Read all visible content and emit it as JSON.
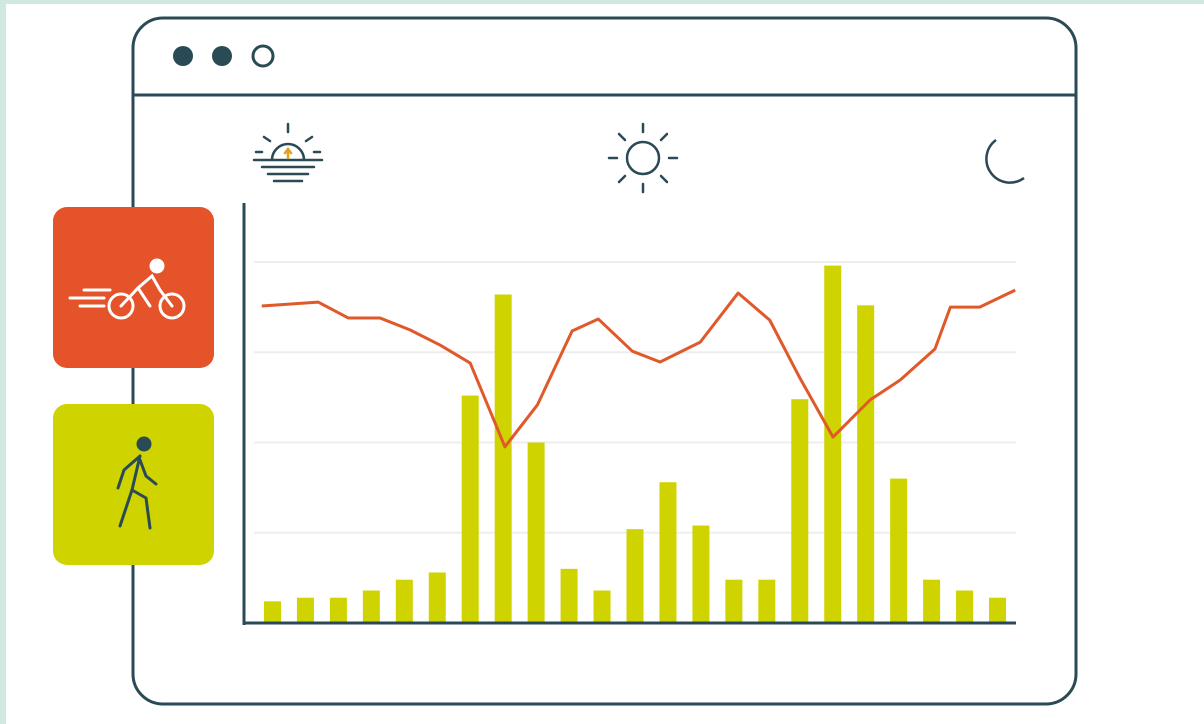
{
  "chart_data": [
    {
      "type": "bar",
      "categories": [
        null,
        null,
        null,
        null,
        null,
        null,
        null,
        null,
        null,
        null,
        null,
        null,
        null,
        null,
        null,
        null,
        null,
        null,
        null,
        null,
        null,
        null,
        null
      ],
      "values": [
        6,
        7,
        7,
        9,
        12,
        14,
        63,
        91,
        50,
        15,
        9,
        26,
        39,
        27,
        12,
        12,
        62,
        99,
        88,
        40,
        12,
        9,
        7
      ],
      "color": "#cfd400",
      "ylim": [
        0,
        100
      ],
      "yticks": [
        25,
        50,
        75,
        100
      ],
      "grid": true
    },
    {
      "type": "line",
      "x": [
        2.3,
        9.6,
        13.5,
        17.6,
        21.5,
        25.4,
        29.3,
        33.8,
        38,
        42.5,
        45.9,
        50.3,
        53.9,
        59.1,
        64,
        68.1,
        72,
        76.3,
        81.1,
        85,
        89.5,
        91.5,
        95.3,
        99.9
      ],
      "values": [
        87.8,
        88.9,
        84.5,
        84.5,
        81.2,
        77,
        72,
        48.8,
        60.4,
        80.9,
        84.2,
        75.3,
        72.3,
        77.8,
        91.4,
        83.9,
        67.9,
        51.5,
        61.8,
        67.3,
        75.9,
        87.5,
        87.5,
        92.2
      ],
      "color": "#e0592a",
      "xlim": [
        0,
        100
      ],
      "ylim": [
        0,
        100
      ]
    }
  ]
}
